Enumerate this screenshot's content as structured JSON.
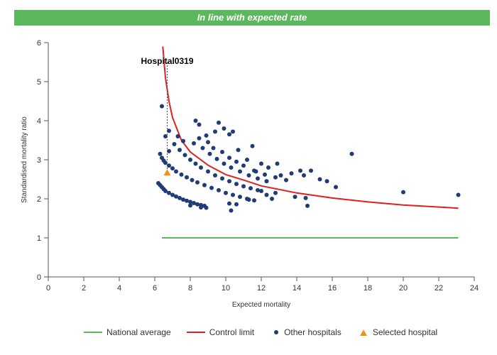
{
  "banner": {
    "text": "In line with expected rate",
    "color": "#5cb85c"
  },
  "chart_data": {
    "type": "scatter",
    "xlabel": "Expected mortality",
    "ylabel": "Standardised mortality ratio",
    "xlim": [
      0,
      24
    ],
    "ylim": [
      0,
      6
    ],
    "xticks": [
      0,
      2,
      4,
      6,
      8,
      10,
      12,
      14,
      16,
      18,
      20,
      22,
      24
    ],
    "yticks": [
      0,
      1,
      2,
      3,
      4,
      5,
      6
    ],
    "grid": false,
    "legend_position": "bottom",
    "national_average": {
      "name": "National average",
      "color": "#5cb85c",
      "y": 1,
      "x": [
        6.4,
        23.1
      ]
    },
    "control_limit": {
      "name": "Control limit",
      "color": "#e02020",
      "points": [
        [
          6.45,
          5.9
        ],
        [
          6.6,
          5.1
        ],
        [
          6.8,
          4.5
        ],
        [
          7.0,
          4.08
        ],
        [
          7.5,
          3.5
        ],
        [
          8.0,
          3.2
        ],
        [
          9.0,
          2.86
        ],
        [
          10.0,
          2.62
        ],
        [
          11.0,
          2.48
        ],
        [
          12.0,
          2.33
        ],
        [
          14.0,
          2.15
        ],
        [
          16.0,
          2.02
        ],
        [
          18.0,
          1.92
        ],
        [
          20.0,
          1.84
        ],
        [
          23.1,
          1.76
        ]
      ]
    },
    "other_hospitals": {
      "name": "Other hospitals",
      "color": "#1f3c74",
      "points": [
        [
          6.2,
          2.4
        ],
        [
          6.3,
          2.35
        ],
        [
          6.4,
          2.3
        ],
        [
          6.5,
          2.25
        ],
        [
          6.6,
          2.2
        ],
        [
          6.8,
          2.15
        ],
        [
          7.0,
          2.1
        ],
        [
          7.2,
          2.06
        ],
        [
          7.4,
          2.02
        ],
        [
          7.6,
          1.98
        ],
        [
          7.8,
          1.95
        ],
        [
          8.0,
          1.92
        ],
        [
          8.2,
          1.89
        ],
        [
          8.4,
          1.86
        ],
        [
          8.6,
          1.84
        ],
        [
          8.8,
          1.82
        ],
        [
          8.0,
          1.83
        ],
        [
          8.6,
          1.78
        ],
        [
          8.9,
          1.77
        ],
        [
          6.3,
          3.15
        ],
        [
          6.4,
          3.05
        ],
        [
          6.5,
          2.98
        ],
        [
          6.6,
          2.92
        ],
        [
          6.8,
          2.85
        ],
        [
          7.0,
          2.78
        ],
        [
          7.2,
          2.7
        ],
        [
          7.5,
          2.62
        ],
        [
          7.8,
          2.55
        ],
        [
          8.1,
          2.48
        ],
        [
          8.4,
          2.42
        ],
        [
          8.8,
          2.35
        ],
        [
          9.2,
          2.28
        ],
        [
          9.6,
          2.22
        ],
        [
          10.0,
          2.15
        ],
        [
          10.4,
          2.1
        ],
        [
          10.8,
          2.05
        ],
        [
          11.2,
          2.0
        ],
        [
          11.6,
          1.96
        ],
        [
          7.1,
          3.4
        ],
        [
          7.4,
          3.25
        ],
        [
          7.7,
          3.12
        ],
        [
          8.0,
          3.0
        ],
        [
          8.3,
          2.9
        ],
        [
          8.6,
          2.8
        ],
        [
          9.0,
          2.7
        ],
        [
          9.4,
          2.6
        ],
        [
          9.8,
          2.52
        ],
        [
          10.2,
          2.45
        ],
        [
          10.6,
          2.38
        ],
        [
          11.0,
          2.32
        ],
        [
          11.4,
          2.27
        ],
        [
          11.8,
          2.22
        ],
        [
          7.3,
          3.6
        ],
        [
          7.6,
          3.48
        ],
        [
          8.2,
          3.42
        ],
        [
          8.7,
          3.3
        ],
        [
          9.1,
          3.15
        ],
        [
          9.5,
          3.02
        ],
        [
          9.9,
          2.9
        ],
        [
          10.3,
          2.8
        ],
        [
          10.8,
          2.7
        ],
        [
          11.3,
          2.6
        ],
        [
          11.8,
          2.52
        ],
        [
          12.3,
          2.45
        ],
        [
          8.5,
          3.55
        ],
        [
          9.0,
          3.45
        ],
        [
          9.3,
          3.3
        ],
        [
          9.8,
          3.2
        ],
        [
          10.2,
          3.05
        ],
        [
          10.6,
          2.95
        ],
        [
          11.0,
          2.85
        ],
        [
          11.6,
          2.72
        ],
        [
          12.2,
          2.62
        ],
        [
          12.8,
          2.55
        ],
        [
          13.4,
          2.48
        ],
        [
          8.3,
          4.0
        ],
        [
          8.5,
          3.9
        ],
        [
          8.9,
          3.62
        ],
        [
          9.4,
          3.72
        ],
        [
          9.6,
          3.95
        ],
        [
          9.9,
          3.8
        ],
        [
          10.2,
          3.65
        ],
        [
          10.4,
          3.72
        ],
        [
          10.7,
          3.25
        ],
        [
          11.2,
          3.0
        ],
        [
          11.5,
          3.35
        ],
        [
          11.7,
          2.7
        ],
        [
          12.0,
          2.9
        ],
        [
          12.4,
          2.8
        ],
        [
          12.9,
          2.9
        ],
        [
          13.1,
          2.6
        ],
        [
          13.7,
          2.65
        ],
        [
          14.2,
          2.72
        ],
        [
          14.4,
          2.6
        ],
        [
          14.8,
          2.72
        ],
        [
          15.3,
          2.5
        ],
        [
          15.7,
          2.45
        ],
        [
          16.2,
          2.3
        ],
        [
          17.1,
          3.15
        ],
        [
          20.0,
          2.17
        ],
        [
          23.1,
          2.1
        ],
        [
          12.0,
          2.2
        ],
        [
          12.3,
          2.1
        ],
        [
          12.6,
          2.0
        ],
        [
          12.8,
          2.15
        ],
        [
          13.9,
          2.05
        ],
        [
          14.5,
          2.02
        ],
        [
          14.6,
          1.82
        ],
        [
          11.3,
          1.98
        ],
        [
          10.2,
          1.88
        ],
        [
          10.6,
          1.86
        ],
        [
          10.3,
          1.7
        ],
        [
          6.4,
          4.37
        ],
        [
          6.6,
          3.6
        ],
        [
          6.8,
          3.74
        ],
        [
          6.8,
          3.22
        ]
      ]
    },
    "selected_hospital": {
      "name": "Selected hospital",
      "color": "#f0901e",
      "label": "Hospital0319",
      "x": 6.7,
      "y": 2.65
    }
  }
}
